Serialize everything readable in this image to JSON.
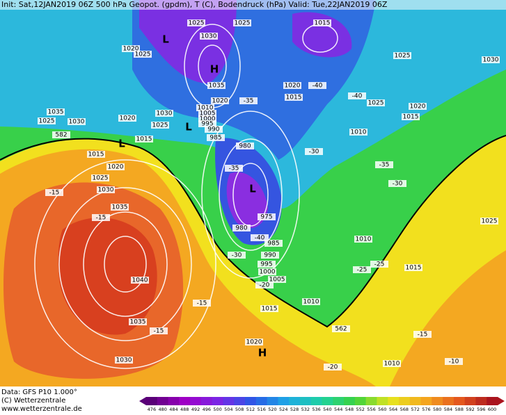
{
  "header": {
    "title": "Init: Sat,12JAN2019 06Z   500 hPa Geopot. (gpdm), T (C), Bodendruck (hPa)  Valid: Tue,22JAN2019 06Z"
  },
  "footer": {
    "data": "Data: GFS P10 1.000°",
    "copyright": "(C) Wetterzentrale",
    "url": "www.wetterzentrale.de"
  },
  "colorbar": {
    "ticks": [
      476,
      480,
      484,
      488,
      492,
      496,
      500,
      504,
      508,
      512,
      516,
      520,
      524,
      528,
      532,
      536,
      540,
      544,
      548,
      552,
      556,
      560,
      564,
      568,
      572,
      576,
      580,
      584,
      588,
      592,
      596,
      600
    ]
  },
  "map": {
    "centers": [
      "L",
      "H",
      "L",
      "L",
      "L",
      "H"
    ],
    "labels": [
      "1025",
      "1030",
      "1025",
      "1015",
      "1020",
      "1025",
      "1025",
      "1030",
      "1035",
      "1020",
      "-40",
      "1020",
      "-35",
      "1015",
      "-40",
      "1025",
      "1020",
      "1015",
      "1035",
      "1025",
      "1030",
      "1020",
      "1030",
      "1025",
      "1010",
      "1005",
      "1000",
      "995",
      "990",
      "985",
      "1015",
      "582",
      "1010",
      "980",
      "-30",
      "1015",
      "1020",
      "-35",
      "-35",
      "1025",
      "1030",
      "-15",
      "-30",
      "1035",
      "975",
      "-15",
      "980",
      "-40",
      "985",
      "1010",
      "1025",
      "990",
      "-30",
      "-25",
      "-25",
      "1015",
      "995",
      "1000",
      "1040",
      "1005",
      "-20",
      "-15",
      "1010",
      "1015",
      "1035",
      "-15",
      "562",
      "-15",
      "1020",
      "1030",
      "1010",
      "-20",
      "-10"
    ]
  }
}
